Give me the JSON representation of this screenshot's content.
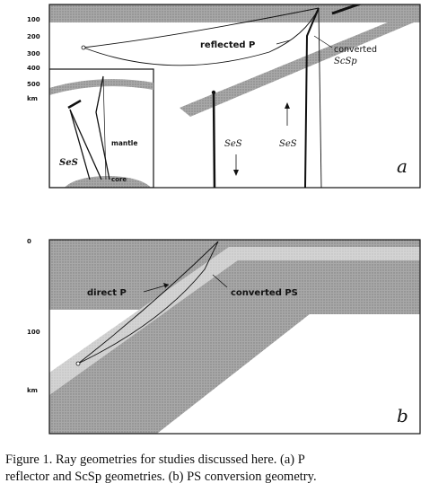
{
  "panel_a": {
    "depth_ticks": [
      "100",
      "200",
      "300",
      "400",
      "500"
    ],
    "depth_unit": "km",
    "labels": {
      "reflected": "reflected P",
      "converted_line1": "converted",
      "converted_line2": "ScSp",
      "ses_left": "SeS",
      "ses_right": "SeS",
      "panel_letter": "a"
    },
    "inset": {
      "ses": "SeS",
      "mantle": "mantle",
      "core": "core"
    }
  },
  "panel_b": {
    "depth_ticks": [
      "0",
      "100"
    ],
    "depth_unit": "km",
    "labels": {
      "direct": "direct P",
      "converted": "converted PS",
      "panel_letter": "b"
    }
  },
  "caption": {
    "line1": "Figure 1. Ray geometries for studies discussed here. (a) P",
    "line2": "reflector and ScSp geometries. (b) PS conversion geometry."
  },
  "colors": {
    "shade": "#9a9a9a",
    "shade_light": "#cfcfcf",
    "ink": "#111111"
  }
}
